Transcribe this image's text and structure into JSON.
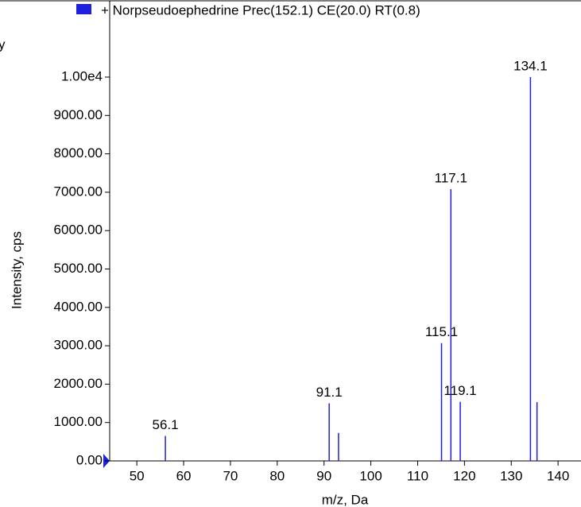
{
  "chart_data": {
    "type": "bar",
    "legend": "+ Norpseudoephedrine Prec(152.1) CE(20.0) RT(0.8)",
    "corner_text": "y",
    "ylabel": "Intensity, cps",
    "xlabel": "m/z, Da",
    "color": "#1f1fe0",
    "x": [
      56.1,
      91.1,
      93.1,
      115.1,
      117.1,
      119.1,
      134.1,
      135.5
    ],
    "values": [
      650,
      1500,
      730,
      3070,
      7080,
      1540,
      10000,
      1530
    ],
    "peak_labels": [
      "56.1",
      "91.1",
      null,
      "115.1",
      "117.1",
      "119.1",
      "134.1",
      null
    ],
    "xlim": [
      44.2,
      144.9
    ],
    "xticks": [
      50,
      60,
      70,
      80,
      90,
      100,
      110,
      120,
      130,
      140
    ],
    "ylim": [
      0,
      12000
    ],
    "yticks": [
      {
        "value": 0,
        "label": "0.00"
      },
      {
        "value": 1000,
        "label": "1000.00"
      },
      {
        "value": 2000,
        "label": "2000.00"
      },
      {
        "value": 3000,
        "label": "3000.00"
      },
      {
        "value": 4000,
        "label": "4000.00"
      },
      {
        "value": 5000,
        "label": "5000.00"
      },
      {
        "value": 6000,
        "label": "6000.00"
      },
      {
        "value": 7000,
        "label": "7000.00"
      },
      {
        "value": 8000,
        "label": "8000.00"
      },
      {
        "value": 9000,
        "label": "9000.00"
      },
      {
        "value": 10000,
        "label": "1.00e4"
      }
    ]
  }
}
